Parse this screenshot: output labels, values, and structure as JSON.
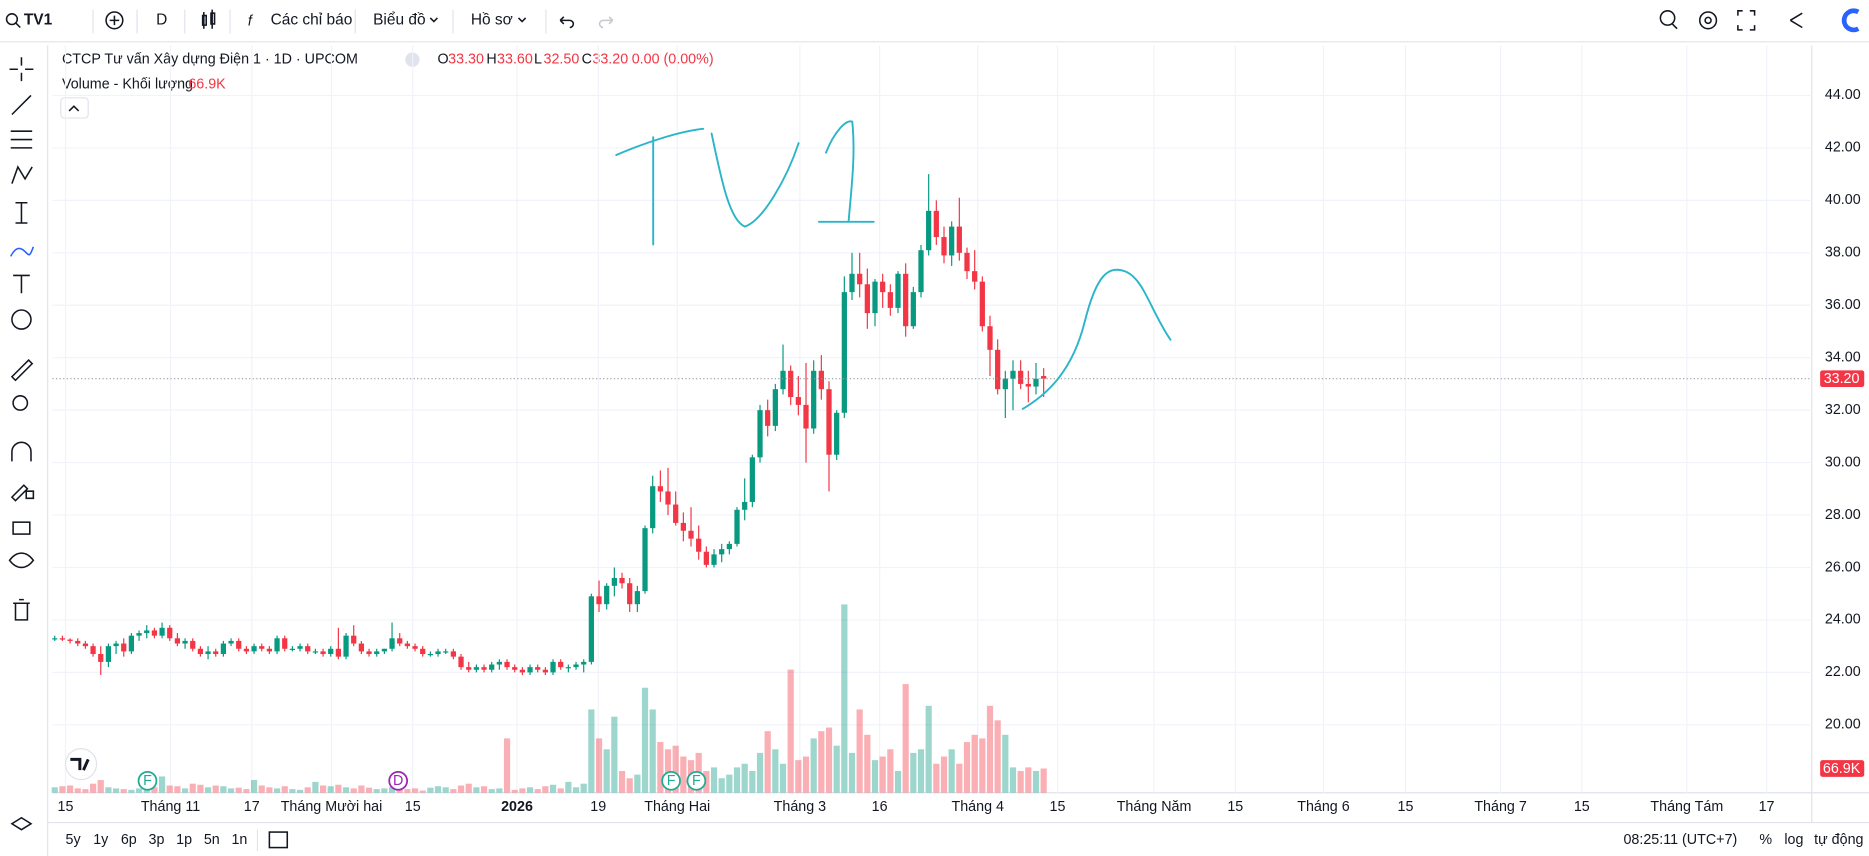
{
  "toolbar": {
    "symbol": "TV1",
    "interval": "D",
    "indicators": "Các chỉ báo",
    "chart": "Biểu đồ",
    "profile": "Hồ sơ"
  },
  "chart_data": {
    "type": "candlestick",
    "legend": {
      "title": "CTCP Tư vấn Xây dựng Điện 1 · 1D · UPCOM",
      "o": "O",
      "open": "33.30",
      "h": "H",
      "high": "33.60",
      "l": "L",
      "low": "32.50",
      "c": "C",
      "close": "33.20",
      "change": "0.00 (0.00%)",
      "volume_name": "Volume - Khối lượng",
      "volume": "66.9K"
    },
    "up_color": "#089981",
    "down_color": "#f23645",
    "ohlc": [
      [
        23.3,
        23.4,
        23.2,
        23.3
      ],
      [
        23.3,
        23.4,
        23.2,
        23.25
      ],
      [
        23.25,
        23.3,
        23.1,
        23.2
      ],
      [
        23.2,
        23.3,
        23.0,
        23.1
      ],
      [
        23.1,
        23.2,
        22.9,
        23.0
      ],
      [
        23.0,
        23.1,
        22.6,
        22.7
      ],
      [
        22.7,
        23.0,
        21.9,
        22.4
      ],
      [
        22.4,
        23.1,
        22.2,
        23.0
      ],
      [
        23.0,
        23.2,
        22.7,
        23.1
      ],
      [
        23.1,
        23.3,
        22.6,
        22.8
      ],
      [
        22.8,
        23.5,
        22.7,
        23.4
      ],
      [
        23.4,
        23.6,
        23.2,
        23.5
      ],
      [
        23.5,
        23.8,
        23.3,
        23.6
      ],
      [
        23.6,
        23.7,
        23.3,
        23.4
      ],
      [
        23.4,
        23.9,
        23.3,
        23.7
      ],
      [
        23.7,
        23.8,
        23.2,
        23.3
      ],
      [
        23.3,
        23.5,
        23.0,
        23.1
      ],
      [
        23.1,
        23.3,
        22.9,
        23.2
      ],
      [
        23.2,
        23.3,
        22.8,
        22.9
      ],
      [
        22.9,
        23.0,
        22.6,
        22.7
      ],
      [
        22.7,
        23.0,
        22.5,
        22.8
      ],
      [
        22.8,
        22.9,
        22.6,
        22.7
      ],
      [
        22.7,
        23.2,
        22.6,
        23.1
      ],
      [
        23.1,
        23.3,
        23.0,
        23.2
      ],
      [
        23.2,
        23.3,
        22.8,
        22.9
      ],
      [
        22.9,
        23.0,
        22.7,
        22.8
      ],
      [
        22.8,
        23.1,
        22.7,
        23.0
      ],
      [
        23.0,
        23.1,
        22.8,
        22.9
      ],
      [
        22.9,
        23.0,
        22.7,
        22.8
      ],
      [
        22.8,
        23.4,
        22.7,
        23.3
      ],
      [
        23.3,
        23.4,
        22.8,
        22.9
      ],
      [
        22.9,
        23.0,
        22.8,
        22.9
      ],
      [
        22.9,
        23.1,
        22.8,
        23.0
      ],
      [
        23.0,
        23.1,
        22.7,
        22.8
      ],
      [
        22.8,
        22.9,
        22.7,
        22.8
      ],
      [
        22.8,
        22.9,
        22.6,
        22.7
      ],
      [
        22.7,
        23.0,
        22.6,
        22.9
      ],
      [
        22.9,
        23.7,
        22.5,
        22.6
      ],
      [
        22.6,
        23.5,
        22.5,
        23.4
      ],
      [
        23.4,
        23.8,
        23.0,
        23.1
      ],
      [
        23.1,
        23.2,
        22.7,
        22.8
      ],
      [
        22.8,
        22.9,
        22.6,
        22.7
      ],
      [
        22.7,
        22.9,
        22.6,
        22.8
      ],
      [
        22.8,
        22.9,
        22.7,
        22.9
      ],
      [
        22.9,
        23.9,
        22.8,
        23.3
      ],
      [
        23.3,
        23.5,
        23.0,
        23.1
      ],
      [
        23.1,
        23.2,
        22.9,
        23.0
      ],
      [
        23.0,
        23.1,
        22.8,
        22.9
      ],
      [
        22.9,
        23.0,
        22.6,
        22.7
      ],
      [
        22.7,
        22.8,
        22.6,
        22.7
      ],
      [
        22.7,
        22.9,
        22.6,
        22.8
      ],
      [
        22.8,
        22.9,
        22.7,
        22.8
      ],
      [
        22.8,
        22.9,
        22.5,
        22.6
      ],
      [
        22.6,
        22.7,
        22.1,
        22.2
      ],
      [
        22.2,
        22.4,
        22.0,
        22.1
      ],
      [
        22.1,
        22.3,
        22.0,
        22.2
      ],
      [
        22.2,
        22.3,
        22.0,
        22.1
      ],
      [
        22.1,
        22.4,
        22.0,
        22.3
      ],
      [
        22.3,
        22.5,
        22.1,
        22.4
      ],
      [
        22.4,
        22.5,
        22.1,
        22.2
      ],
      [
        22.2,
        22.3,
        22.0,
        22.1
      ],
      [
        22.1,
        22.2,
        21.9,
        22.0
      ],
      [
        22.0,
        22.3,
        21.9,
        22.2
      ],
      [
        22.2,
        22.3,
        22.0,
        22.1
      ],
      [
        22.1,
        22.2,
        21.9,
        22.0
      ],
      [
        22.0,
        22.5,
        21.9,
        22.4
      ],
      [
        22.4,
        22.5,
        22.1,
        22.2
      ],
      [
        22.2,
        22.3,
        22.0,
        22.2
      ],
      [
        22.2,
        22.4,
        22.1,
        22.3
      ],
      [
        22.3,
        22.5,
        22.0,
        22.4
      ],
      [
        22.4,
        25.0,
        22.3,
        24.9
      ],
      [
        24.9,
        25.5,
        24.3,
        24.6
      ],
      [
        24.6,
        25.4,
        24.4,
        25.3
      ],
      [
        25.3,
        26.0,
        24.9,
        25.6
      ],
      [
        25.6,
        25.8,
        25.2,
        25.4
      ],
      [
        25.4,
        25.6,
        24.3,
        24.6
      ],
      [
        24.6,
        25.3,
        24.3,
        25.1
      ],
      [
        25.1,
        27.6,
        25.0,
        27.5
      ],
      [
        27.5,
        29.5,
        27.3,
        29.1
      ],
      [
        29.1,
        29.7,
        28.5,
        28.9
      ],
      [
        28.9,
        29.8,
        28.0,
        28.4
      ],
      [
        28.4,
        28.9,
        27.6,
        27.7
      ],
      [
        27.7,
        28.1,
        27.0,
        27.4
      ],
      [
        27.4,
        28.3,
        26.8,
        27.1
      ],
      [
        27.1,
        27.6,
        26.3,
        26.6
      ],
      [
        26.6,
        26.8,
        26.0,
        26.1
      ],
      [
        26.1,
        26.7,
        26.0,
        26.5
      ],
      [
        26.5,
        26.9,
        26.2,
        26.7
      ],
      [
        26.7,
        27.0,
        26.5,
        26.9
      ],
      [
        26.9,
        28.3,
        26.8,
        28.2
      ],
      [
        28.2,
        29.4,
        27.8,
        28.5
      ],
      [
        28.5,
        30.3,
        28.3,
        30.2
      ],
      [
        30.2,
        32.2,
        30.0,
        32.0
      ],
      [
        32.0,
        32.4,
        31.0,
        31.4
      ],
      [
        31.4,
        33.0,
        31.2,
        32.8
      ],
      [
        32.8,
        34.5,
        32.6,
        33.5
      ],
      [
        33.5,
        33.7,
        32.2,
        32.5
      ],
      [
        32.5,
        33.3,
        31.8,
        32.2
      ],
      [
        32.2,
        33.8,
        30.0,
        31.3
      ],
      [
        31.3,
        33.9,
        31.1,
        33.5
      ],
      [
        33.5,
        34.1,
        32.4,
        32.8
      ],
      [
        32.8,
        33.1,
        28.9,
        30.3
      ],
      [
        30.3,
        32.0,
        30.1,
        31.9
      ],
      [
        31.9,
        37.1,
        31.7,
        36.5
      ],
      [
        36.5,
        38.0,
        36.2,
        37.2
      ],
      [
        37.2,
        38.0,
        36.3,
        36.8
      ],
      [
        36.8,
        37.4,
        35.1,
        35.7
      ],
      [
        35.7,
        37.0,
        35.2,
        36.9
      ],
      [
        36.9,
        37.2,
        35.9,
        36.5
      ],
      [
        36.5,
        36.8,
        35.6,
        35.9
      ],
      [
        35.9,
        37.3,
        35.7,
        37.2
      ],
      [
        37.2,
        37.6,
        34.8,
        35.2
      ],
      [
        35.2,
        36.7,
        35.1,
        36.5
      ],
      [
        36.5,
        38.3,
        36.3,
        38.1
      ],
      [
        38.1,
        41.0,
        37.9,
        39.6
      ],
      [
        39.6,
        40.0,
        38.3,
        38.6
      ],
      [
        38.6,
        39.0,
        37.6,
        37.9
      ],
      [
        37.9,
        39.2,
        37.5,
        39.0
      ],
      [
        39.0,
        40.1,
        37.7,
        38.0
      ],
      [
        38.0,
        38.2,
        37.0,
        37.3
      ],
      [
        37.3,
        38.1,
        36.6,
        36.9
      ],
      [
        36.9,
        37.1,
        35.0,
        35.2
      ],
      [
        35.2,
        35.6,
        33.3,
        34.3
      ],
      [
        34.3,
        34.7,
        32.6,
        32.8
      ],
      [
        32.8,
        33.5,
        31.7,
        33.2
      ],
      [
        33.2,
        33.9,
        32.0,
        33.5
      ],
      [
        33.5,
        33.9,
        32.8,
        33.0
      ],
      [
        33.0,
        33.5,
        32.3,
        32.9
      ],
      [
        32.9,
        33.8,
        32.6,
        33.2
      ],
      [
        33.3,
        33.6,
        32.5,
        33.2
      ]
    ],
    "volume": [
      15000,
      18000,
      20000,
      12000,
      10000,
      25000,
      35000,
      15000,
      12000,
      10000,
      8000,
      12000,
      10000,
      15000,
      45000,
      20000,
      18000,
      12000,
      25000,
      22000,
      15000,
      20000,
      18000,
      12000,
      14000,
      10000,
      35000,
      20000,
      15000,
      12000,
      18000,
      10000,
      8000,
      15000,
      30000,
      20000,
      18000,
      22000,
      15000,
      12000,
      20000,
      14000,
      10000,
      12000,
      15000,
      8000,
      10000,
      12000,
      6000,
      14000,
      18000,
      15000,
      10000,
      20000,
      25000,
      15000,
      18000,
      10000,
      12000,
      150000,
      8000,
      12000,
      15000,
      10000,
      18000,
      22000,
      12000,
      30000,
      15000,
      25000,
      230000,
      150000,
      120000,
      210000,
      60000,
      40000,
      50000,
      290000,
      230000,
      140000,
      120000,
      130000,
      100000,
      90000,
      110000,
      60000,
      70000,
      40000,
      50000,
      70000,
      80000,
      60000,
      110000,
      170000,
      120000,
      80000,
      340000,
      90000,
      100000,
      150000,
      170000,
      180000,
      130000,
      520000,
      110000,
      230000,
      160000,
      90000,
      100000,
      120000,
      60000,
      300000,
      110000,
      120000,
      240000,
      80000,
      100000,
      120000,
      80000,
      140000,
      160000,
      150000,
      240000,
      200000,
      160000,
      70000,
      60000,
      70000,
      60000,
      66900
    ],
    "ylim": [
      17.41,
      45.91
    ],
    "yticks": [
      {
        "value": 20,
        "label": "20.00"
      },
      {
        "value": 22,
        "label": "22.00"
      },
      {
        "value": 24,
        "label": "24.00"
      },
      {
        "value": 26,
        "label": "26.00"
      },
      {
        "value": 28,
        "label": "28.00"
      },
      {
        "value": 30,
        "label": "30.00"
      },
      {
        "value": 32,
        "label": "32.00"
      },
      {
        "value": 34,
        "label": "34.00"
      },
      {
        "value": 36,
        "label": "36.00"
      },
      {
        "value": 38,
        "label": "38.00"
      },
      {
        "value": 40,
        "label": "40.00"
      },
      {
        "value": 42,
        "label": "42.00"
      },
      {
        "value": 44,
        "label": "44.00"
      }
    ],
    "xlim": [
      -0.3,
      229.2
    ],
    "xticks": [
      {
        "value": 1.4,
        "label": "15"
      },
      {
        "value": 15.1,
        "label": "Tháng 11"
      },
      {
        "value": 25.7,
        "label": "17"
      },
      {
        "value": 36.1,
        "label": "Tháng Mười hai"
      },
      {
        "value": 46.7,
        "label": "15"
      },
      {
        "value": 60.3,
        "label": "2026"
      },
      {
        "value": 70.9,
        "label": "19"
      },
      {
        "value": 81.2,
        "label": "Tháng Hai"
      },
      {
        "value": 97.2,
        "label": "Tháng 3"
      },
      {
        "value": 107.6,
        "label": "16"
      },
      {
        "value": 120.4,
        "label": "Tháng 4"
      },
      {
        "value": 130.8,
        "label": "15"
      },
      {
        "value": 143.4,
        "label": "Tháng Năm"
      },
      {
        "value": 154,
        "label": "15"
      },
      {
        "value": 165.5,
        "label": "Tháng 6"
      },
      {
        "value": 176.2,
        "label": "15"
      },
      {
        "value": 188.6,
        "label": "Tháng 7"
      },
      {
        "value": 199.2,
        "label": "15"
      },
      {
        "value": 212.9,
        "label": "Tháng Tám"
      },
      {
        "value": 223.3,
        "label": "17"
      }
    ],
    "events": [
      {
        "x": 12.1,
        "label": "F"
      },
      {
        "x": 44.8,
        "label": "D"
      },
      {
        "x": 80.4,
        "label": "F"
      },
      {
        "x": 83.7,
        "label": "F"
      }
    ],
    "grid": true
  },
  "bottom_bar": {
    "ranges": [
      "5y",
      "1y",
      "6p",
      "3p",
      "1p",
      "5n",
      "1n"
    ],
    "time": "08:25:11 (UTC+7)",
    "percent": "%",
    "log": "log",
    "auto": "tự động"
  }
}
